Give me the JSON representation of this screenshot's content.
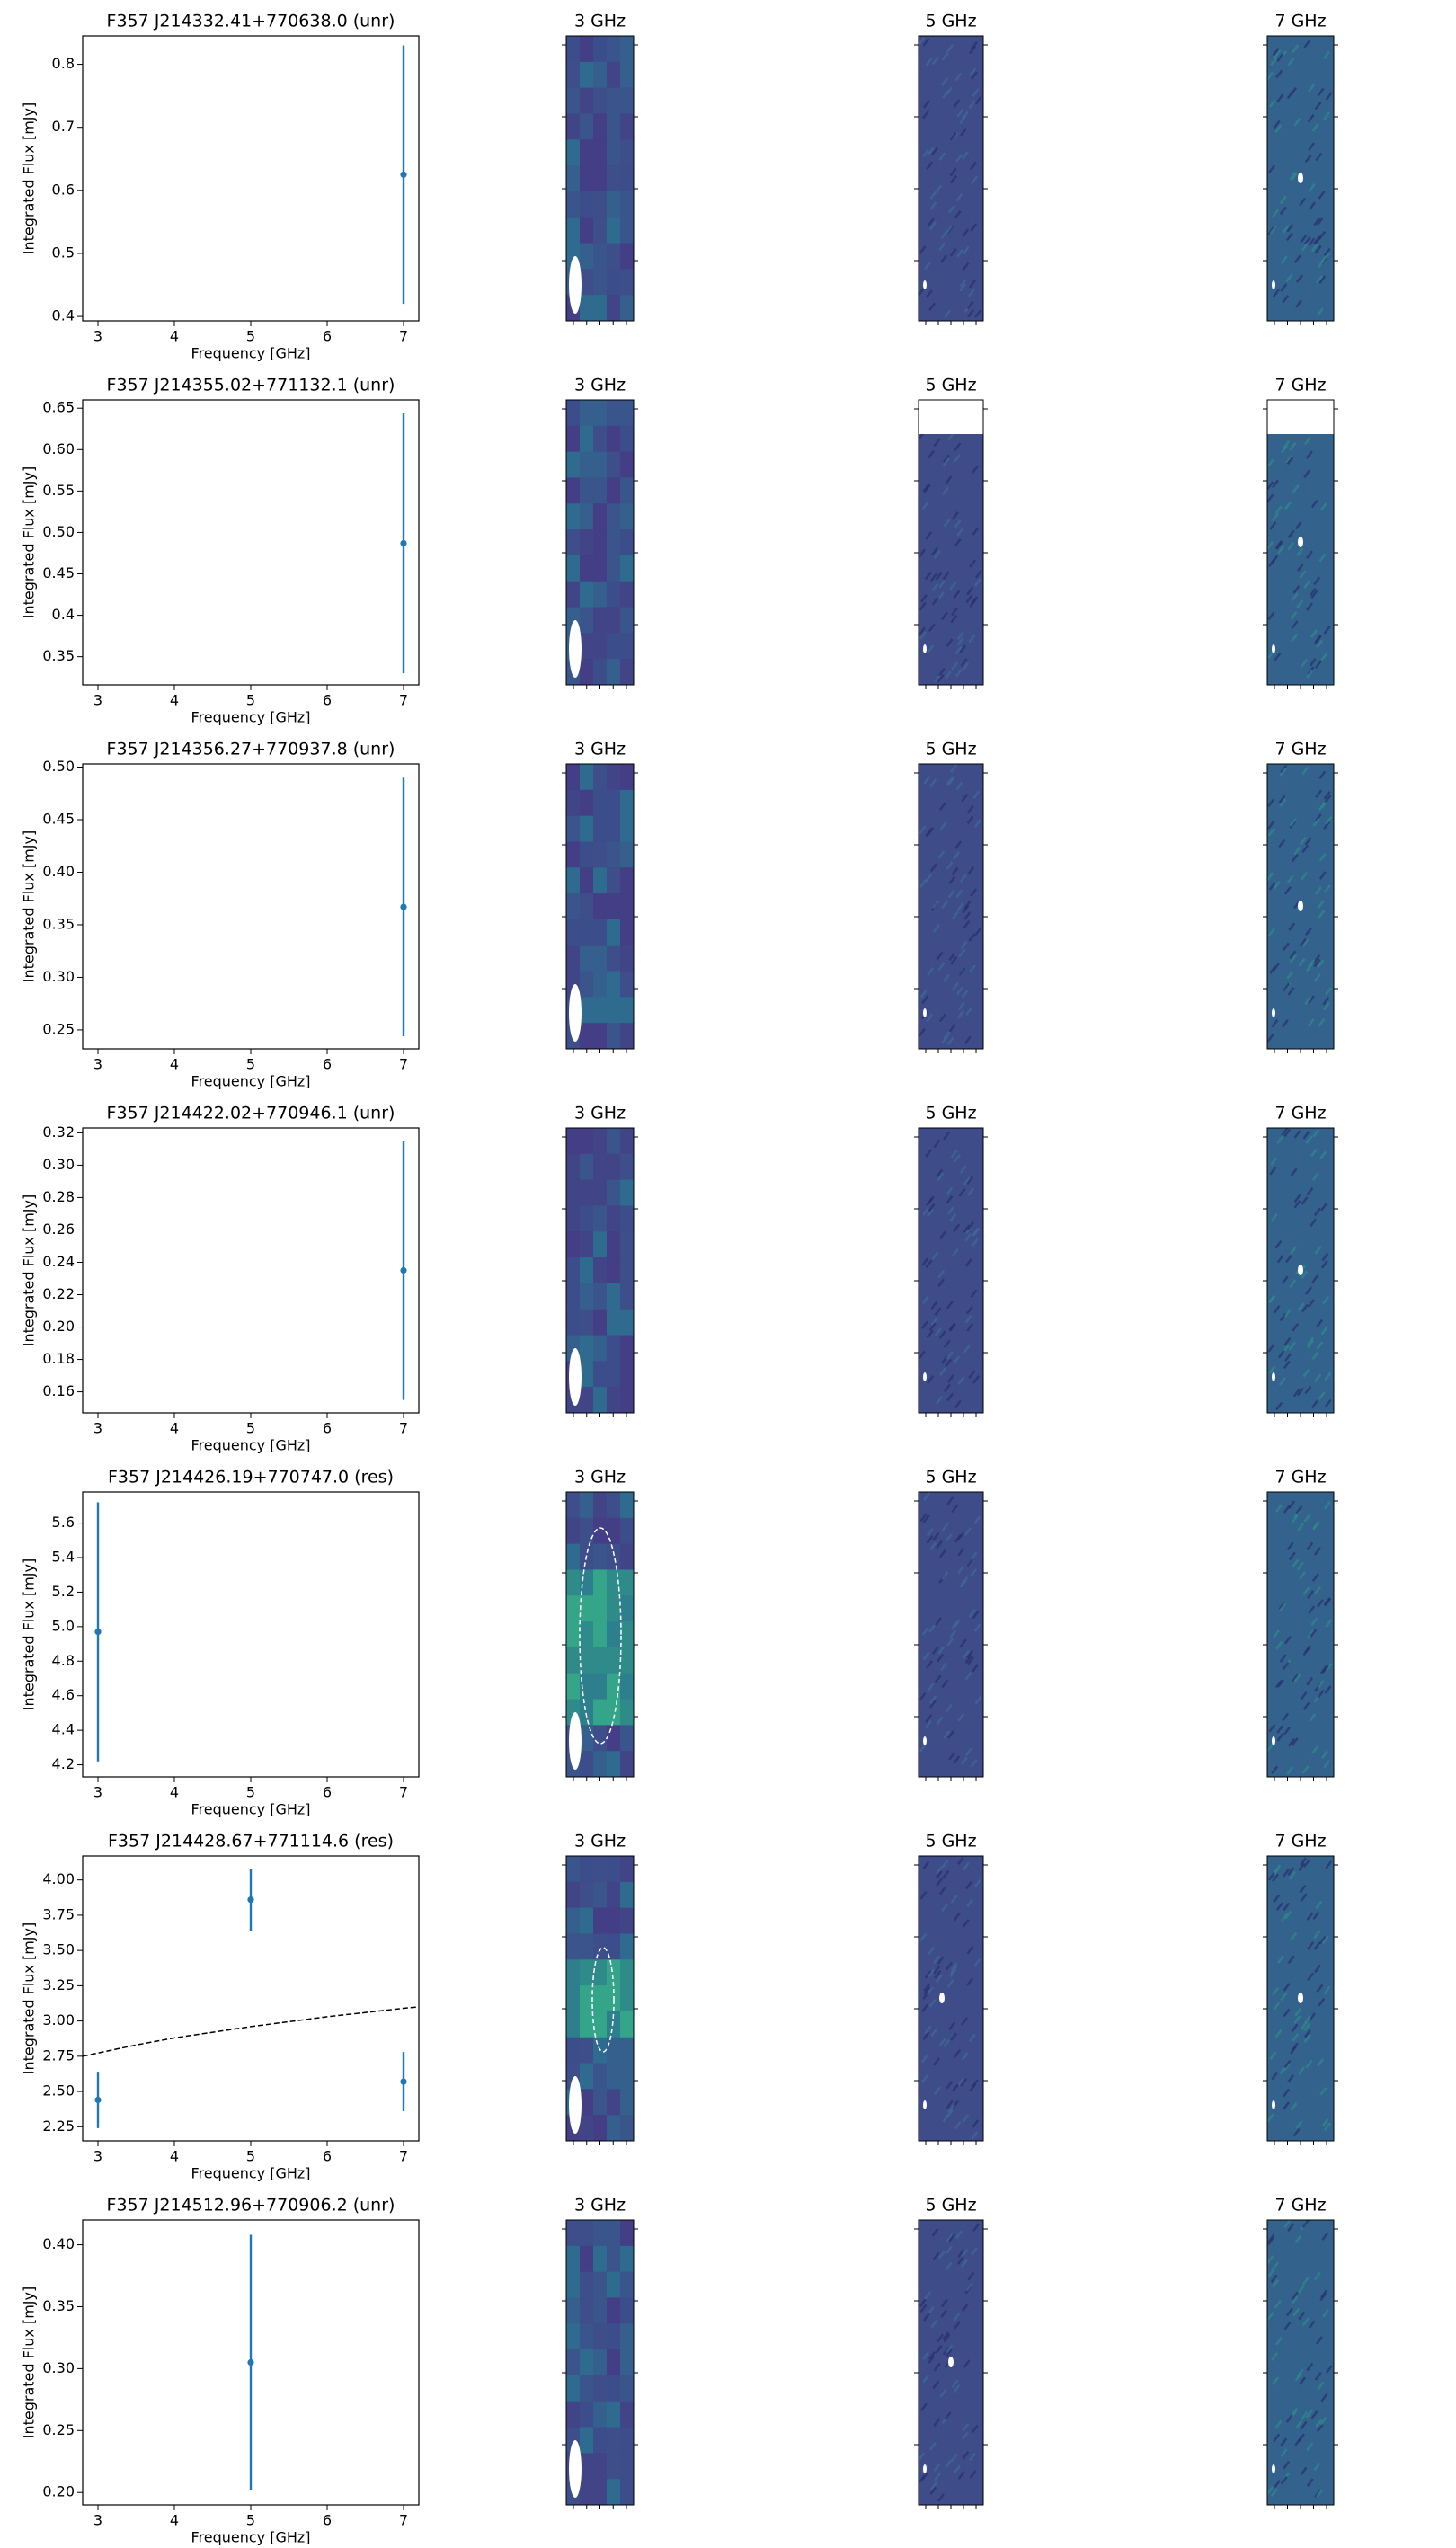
{
  "chart_data": [
    {
      "type": "errorbar",
      "title": "F357 J214332.41+770638.0 (unr)",
      "xlabel": "Frequency [GHz]",
      "ylabel": "Integrated Flux [mJy]",
      "x": [
        7
      ],
      "values": [
        0.625
      ],
      "errors": [
        0.205
      ],
      "color": "#1f77b4",
      "xlim": [
        2.8,
        7.2
      ],
      "xticks": [
        3,
        4,
        5,
        6,
        7
      ],
      "ylim": [
        0.393,
        0.845
      ],
      "yticks": [
        0.4,
        0.5,
        0.6,
        0.7,
        0.8
      ],
      "panels": [
        "3 GHz",
        "5 GHz",
        "7 GHz"
      ]
    },
    {
      "type": "errorbar",
      "title": "F357 J214355.02+771132.1 (unr)",
      "xlabel": "Frequency [GHz]",
      "ylabel": "Integrated Flux [mJy]",
      "x": [
        7
      ],
      "values": [
        0.487
      ],
      "errors": [
        0.157
      ],
      "color": "#1f77b4",
      "xlim": [
        2.8,
        7.2
      ],
      "xticks": [
        3,
        4,
        5,
        6,
        7
      ],
      "ylim": [
        0.316,
        0.66
      ],
      "yticks": [
        0.35,
        0.4,
        0.45,
        {
          "value": 0.5,
          "label": "0.50"
        },
        0.55,
        {
          "value": 0.6,
          "label": "0.60"
        },
        0.65
      ],
      "panels": [
        "3 GHz",
        "5 GHz",
        "7 GHz"
      ]
    },
    {
      "type": "errorbar",
      "title": "F357 J214356.27+770937.8 (unr)",
      "xlabel": "Frequency [GHz]",
      "ylabel": "Integrated Flux [mJy]",
      "x": [
        7
      ],
      "values": [
        0.367
      ],
      "errors": [
        0.123
      ],
      "color": "#1f77b4",
      "xlim": [
        2.8,
        7.2
      ],
      "xticks": [
        3,
        4,
        5,
        6,
        7
      ],
      "ylim": [
        0.232,
        0.503
      ],
      "yticks": [
        0.25,
        {
          "value": 0.3,
          "label": "0.30"
        },
        0.35,
        {
          "value": 0.4,
          "label": "0.40"
        },
        0.45,
        {
          "value": 0.5,
          "label": "0.50"
        }
      ],
      "panels": [
        "3 GHz",
        "5 GHz",
        "7 GHz"
      ]
    },
    {
      "type": "errorbar",
      "title": "F357 J214422.02+770946.1 (unr)",
      "xlabel": "Frequency [GHz]",
      "ylabel": "Integrated Flux [mJy]",
      "x": [
        7
      ],
      "values": [
        0.235
      ],
      "errors": [
        0.08
      ],
      "color": "#1f77b4",
      "xlim": [
        2.8,
        7.2
      ],
      "xticks": [
        3,
        4,
        5,
        6,
        7
      ],
      "ylim": [
        0.147,
        0.323
      ],
      "yticks": [
        0.16,
        0.18,
        {
          "value": 0.2,
          "label": "0.20"
        },
        0.22,
        0.24,
        0.26,
        0.28,
        {
          "value": 0.3,
          "label": "0.30"
        },
        0.32
      ],
      "panels": [
        "3 GHz",
        "5 GHz",
        "7 GHz"
      ]
    },
    {
      "type": "errorbar",
      "title": "F357 J214426.19+770747.0 (res)",
      "xlabel": "Frequency [GHz]",
      "ylabel": "Integrated Flux [mJy]",
      "x": [
        3
      ],
      "values": [
        4.97
      ],
      "errors": [
        0.75
      ],
      "color": "#1f77b4",
      "xlim": [
        2.8,
        7.2
      ],
      "xticks": [
        3,
        4,
        5,
        6,
        7
      ],
      "ylim": [
        4.13,
        5.78
      ],
      "yticks": [
        4.2,
        4.4,
        4.6,
        4.8,
        {
          "value": 5,
          "label": "5.0"
        },
        5.2,
        5.4,
        5.6
      ],
      "panels": [
        "3 GHz",
        "5 GHz",
        "7 GHz"
      ]
    },
    {
      "type": "errorbar",
      "title": "F357 J214428.67+771114.6 (res)",
      "xlabel": "Frequency [GHz]",
      "ylabel": "Integrated Flux [mJy]",
      "x": [
        3,
        5,
        7
      ],
      "values": [
        2.44,
        3.86,
        2.57
      ],
      "errors": [
        0.2,
        0.22,
        0.21
      ],
      "color": "#1f77b4",
      "fit": {
        "x": [
          2.8,
          3.5,
          4,
          5,
          6,
          7,
          7.2
        ],
        "values": [
          2.75,
          2.83,
          2.88,
          2.96,
          3.03,
          3.09,
          3.1
        ]
      },
      "xlim": [
        2.8,
        7.2
      ],
      "xticks": [
        3,
        4,
        5,
        6,
        7
      ],
      "ylim": [
        2.15,
        4.17
      ],
      "yticks": [
        2.25,
        {
          "value": 2.5,
          "label": "2.50"
        },
        2.75,
        {
          "value": 3,
          "label": "3.00"
        },
        3.25,
        {
          "value": 3.5,
          "label": "3.50"
        },
        3.75,
        {
          "value": 4,
          "label": "4.00"
        }
      ],
      "panels": [
        "3 GHz",
        "5 GHz",
        "7 GHz"
      ]
    },
    {
      "type": "errorbar",
      "title": "F357 J214512.96+770906.2 (unr)",
      "xlabel": "Frequency [GHz]",
      "ylabel": "Integrated Flux [mJy]",
      "x": [
        5
      ],
      "values": [
        0.305
      ],
      "errors": [
        0.103
      ],
      "color": "#1f77b4",
      "xlim": [
        2.8,
        7.2
      ],
      "xticks": [
        3,
        4,
        5,
        6,
        7
      ],
      "ylim": [
        0.19,
        0.42
      ],
      "yticks": [
        {
          "value": 0.2,
          "label": "0.20"
        },
        0.25,
        {
          "value": 0.3,
          "label": "0.30"
        },
        0.35,
        {
          "value": 0.4,
          "label": "0.40"
        }
      ],
      "panels": [
        "3 GHz",
        "5 GHz",
        "7 GHz"
      ]
    }
  ]
}
